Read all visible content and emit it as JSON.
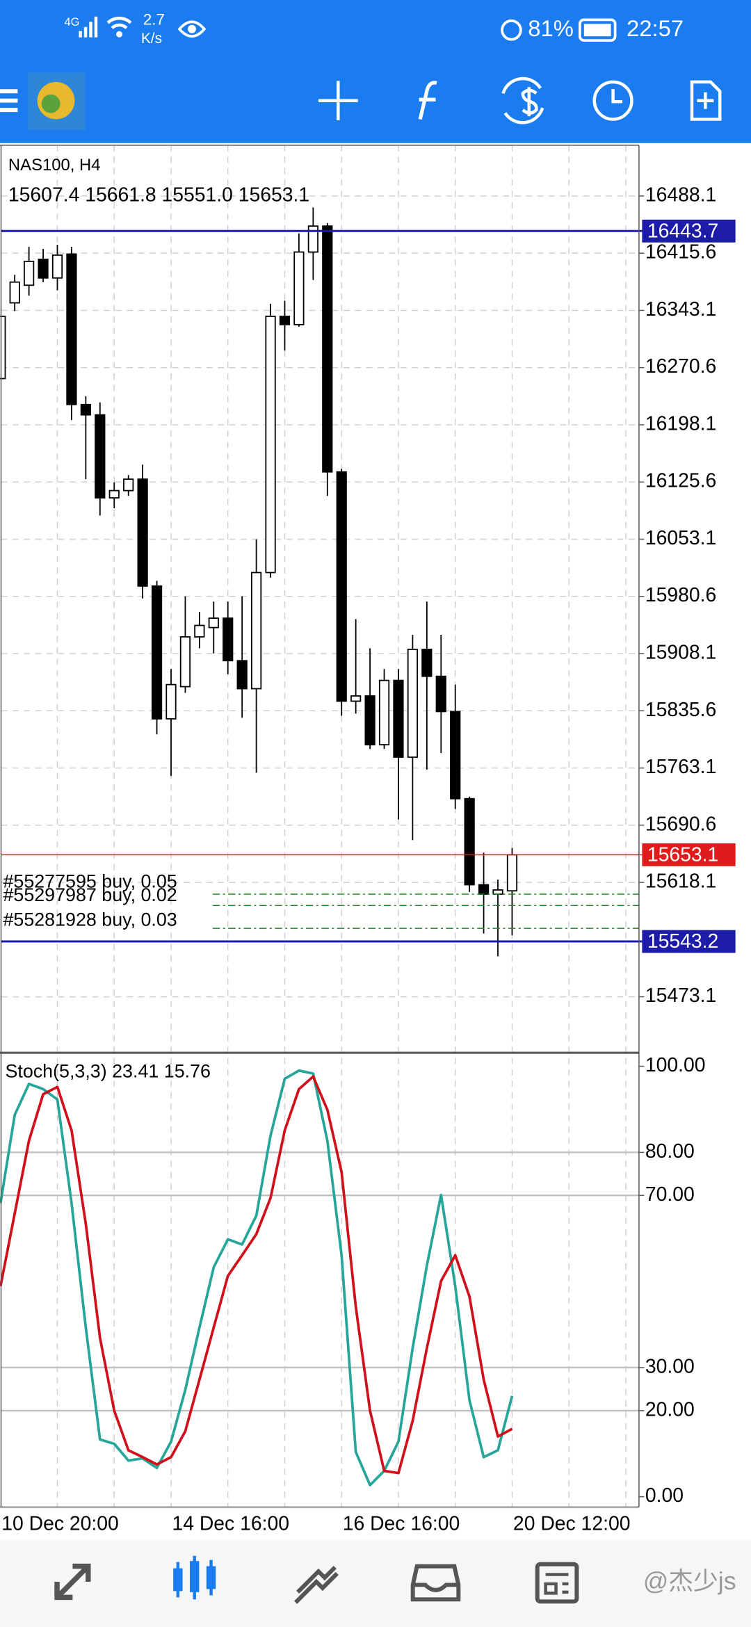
{
  "status_bar": {
    "network": "4G",
    "speed": "2.7",
    "speed_unit": "K/s",
    "battery": "81%",
    "time": "22:57"
  },
  "chart_data": [
    {
      "type": "candlestick",
      "title": "NAS100, H4",
      "ohlc_label": "15607.4 15661.8 15551.0 15653.1",
      "categories": [
        "10 Dec 20:00",
        null,
        null,
        null,
        null,
        null,
        null,
        null,
        null,
        null,
        null,
        null,
        "14 Dec 16:00",
        null,
        null,
        null,
        null,
        null,
        null,
        null,
        null,
        null,
        null,
        null,
        "16 Dec 16:00",
        null,
        null,
        null,
        null,
        null,
        null,
        null,
        null,
        null,
        null,
        null,
        "20 Dec 12:00"
      ],
      "open": [
        16256.7,
        16352.7,
        16375.0,
        16407.9,
        16384.2,
        16414.5,
        16223.8,
        16210.7,
        16105.5,
        16114.7,
        16129.2,
        15993.7,
        15825.4,
        15866.2,
        15929.3,
        15941.1,
        15953.0,
        15899.1,
        15863.6,
        16010.8,
        16335.6,
        16325.1,
        16417.1,
        16450.0,
        16138.4,
        15847.8,
        15854.4,
        15792.6,
        15874.1,
        15776.8,
        15913.5,
        15879.3,
        15834.6,
        15724.2,
        15615.1,
        15603.2,
        15607.4
      ],
      "high": [
        16335.6,
        16388.2,
        16423.7,
        16421.0,
        16426.3,
        16423.7,
        16234.3,
        16226.5,
        16125.2,
        16134.4,
        16147.6,
        16000.3,
        15888.6,
        15980.6,
        15960.9,
        15974.0,
        15974.0,
        15980.6,
        16052.9,
        16351.4,
        16355.3,
        16440.8,
        16473.6,
        16453.9,
        16142.3,
        15951.7,
        15914.8,
        15888.6,
        15888.6,
        15931.9,
        15974.0,
        15931.9,
        15868.8,
        15726.8,
        15655.8,
        15621.6,
        15661.8
      ],
      "low": [
        16256.7,
        16342.2,
        16361.9,
        16379.0,
        16368.5,
        16204.1,
        16129.2,
        16083.1,
        16092.3,
        16108.1,
        15978.0,
        15805.7,
        15753.1,
        15858.3,
        15914.8,
        15908.3,
        15882.0,
        15826.8,
        15757.1,
        16004.3,
        16292.2,
        16322.4,
        16381.6,
        16108.1,
        15829.4,
        15832.0,
        15787.3,
        15787.3,
        15697.9,
        15671.6,
        15761.0,
        15782.1,
        15711.1,
        15605.9,
        15553.3,
        15524.4,
        15551.0
      ],
      "close": [
        16335.6,
        16379.0,
        16405.3,
        16384.2,
        16413.2,
        16223.8,
        16210.7,
        16105.5,
        16114.7,
        16129.2,
        15993.7,
        15825.4,
        15868.8,
        15929.3,
        15943.8,
        15953.0,
        15899.1,
        15863.6,
        16010.8,
        16335.6,
        16325.1,
        16417.1,
        16450.0,
        16138.4,
        15847.8,
        15854.4,
        15792.6,
        15874.1,
        15776.8,
        15913.5,
        15879.3,
        15834.6,
        15724.2,
        15615.1,
        15603.2,
        15608.5,
        15653.1
      ],
      "ylim": [
        15402.1,
        16552.5
      ],
      "yticks": [
        16488.1,
        16415.6,
        16343.1,
        16270.6,
        16198.1,
        16125.6,
        16053.1,
        15980.6,
        15908.1,
        15835.6,
        15763.1,
        15690.6,
        15618.1,
        15473.1
      ],
      "grid": true,
      "price_lines": [
        {
          "value": 16443.7,
          "color": "#1c1ca8"
        },
        {
          "value": 15653.1,
          "color": "#e01b1b"
        },
        {
          "value": 15543.2,
          "color": "#1c1ca8"
        }
      ],
      "orders": [
        {
          "label": "#55277595 buy, 0.05",
          "value": 15603.2
        },
        {
          "label": "#55297987 buy, 0.02",
          "value": 15588.8
        },
        {
          "label": "#55281928 buy, 0.03",
          "value": 15559.9
        }
      ],
      "up_color": "#ffffff",
      "down_color": "#000000"
    },
    {
      "type": "line",
      "title": "Stoch(5,3,3) 23.41 15.76",
      "ylim": [
        0,
        100
      ],
      "yticks": [
        {
          "value": 100,
          "label": "100.00"
        },
        {
          "value": 80,
          "label": "80.00"
        },
        {
          "value": 70,
          "label": "70.00"
        },
        {
          "value": 30,
          "label": "30.00"
        },
        {
          "value": 20,
          "label": "20.00"
        },
        {
          "value": 0,
          "label": "0.00"
        }
      ],
      "grid": true,
      "series": [
        {
          "color": "#26a69a",
          "values": [
            68.2,
            88.7,
            95.9,
            94.7,
            92.3,
            68.2,
            39.3,
            13.3,
            12.3,
            8.4,
            8.9,
            6.7,
            12.8,
            24.8,
            39.3,
            53.3,
            59.8,
            58.6,
            65.3,
            83.9,
            97.1,
            99.0,
            98.3,
            82.7,
            56.1,
            10.4,
            2.7,
            6.0,
            12.8,
            34.5,
            53.7,
            70.1,
            48.9,
            22.4,
            9.2,
            10.8,
            23.41
          ]
        },
        {
          "color": "#d0101a",
          "values": [
            48.9,
            65.8,
            82.7,
            93.5,
            95.2,
            85.1,
            63.4,
            36.9,
            20.0,
            10.8,
            9.2,
            7.5,
            9.2,
            15.2,
            27.2,
            39.3,
            51.3,
            56.1,
            61.0,
            69.4,
            85.1,
            94.7,
            97.6,
            89.9,
            75.4,
            44.1,
            20.0,
            6.0,
            5.5,
            17.6,
            34.5,
            50.1,
            56.1,
            46.5,
            27.2,
            14.0,
            15.76
          ]
        }
      ]
    }
  ],
  "watermark": "@杰少js"
}
